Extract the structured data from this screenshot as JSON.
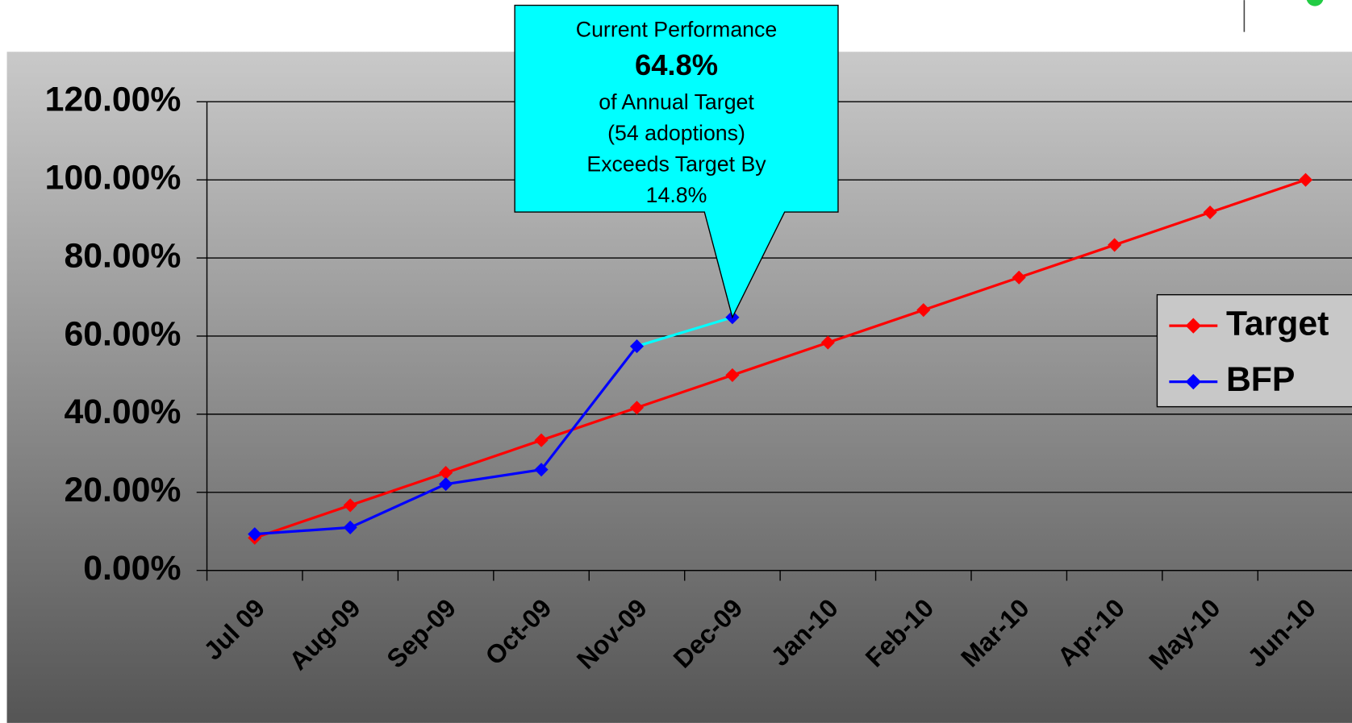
{
  "chart_data": {
    "type": "line",
    "categories": [
      "Jul 09",
      "Aug-09",
      "Sep-09",
      "Oct-09",
      "Nov-09",
      "Dec-09",
      "Jan-10",
      "Feb-10",
      "Mar-10",
      "Apr-10",
      "May-10",
      "Jun-10"
    ],
    "series": [
      {
        "name": "Target",
        "color": "#ff0000",
        "values": [
          8.33,
          16.67,
          25,
          33.33,
          41.67,
          50,
          58.33,
          66.67,
          75,
          83.33,
          91.67,
          100
        ]
      },
      {
        "name": "BFP",
        "color": "#0000ff",
        "last_segment_color": "#00ffff",
        "values": [
          9.3,
          11,
          22.1,
          25.8,
          57.4,
          64.8,
          null,
          null,
          null,
          null,
          null,
          null
        ]
      }
    ],
    "ylim": [
      0,
      120
    ],
    "yticks": [
      {
        "value": 0,
        "label": "0.00%"
      },
      {
        "value": 20,
        "label": "20.00%"
      },
      {
        "value": 40,
        "label": "40.00%"
      },
      {
        "value": 60,
        "label": "60.00%"
      },
      {
        "value": 80,
        "label": "80.00%"
      },
      {
        "value": 100,
        "label": "100.00%"
      },
      {
        "value": 120,
        "label": "120.00%"
      }
    ],
    "grid": true,
    "legend": "right",
    "annotation": {
      "lines": [
        "Current Performance",
        "64.8%",
        "of Annual Target",
        "(54 adoptions)",
        "Exceeds Target By",
        "14.8%"
      ],
      "color": "#00ffff"
    }
  }
}
